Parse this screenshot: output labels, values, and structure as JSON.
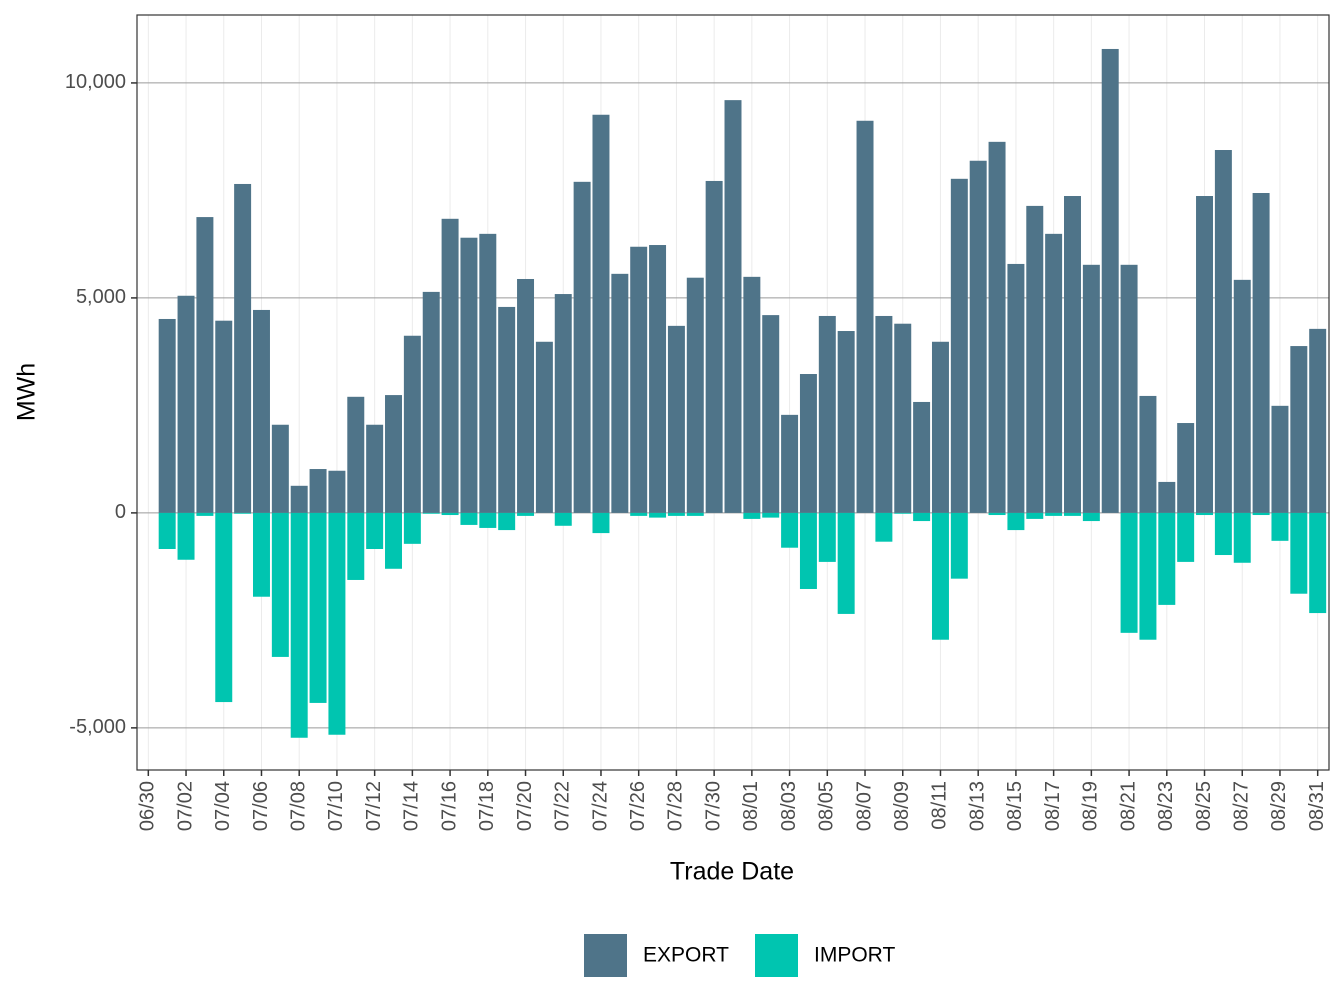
{
  "chart_data": {
    "type": "bar",
    "x_label": "Trade Date",
    "y_label": "MWh",
    "categories": [
      "06/30",
      null,
      "07/02",
      null,
      "07/04",
      null,
      "07/06",
      null,
      "07/08",
      null,
      "07/10",
      null,
      "07/12",
      null,
      "07/14",
      null,
      "07/16",
      null,
      "07/18",
      null,
      "07/20",
      null,
      "07/22",
      null,
      "07/24",
      null,
      "07/26",
      null,
      "07/28",
      null,
      "07/30",
      null,
      "08/01",
      null,
      "08/03",
      null,
      "08/05",
      null,
      "08/07",
      null,
      "08/09",
      null,
      "08/11",
      null,
      "08/13",
      null,
      "08/15",
      null,
      "08/17",
      null,
      "08/19",
      null,
      "08/21",
      null,
      "08/23",
      null,
      "08/25",
      null,
      "08/27",
      null,
      "08/29",
      null,
      "08/31"
    ],
    "series": [
      {
        "name": "EXPORT",
        "color": "#4f7489",
        "values": [
          null,
          4510,
          5050,
          6880,
          4470,
          7650,
          4720,
          2050,
          630,
          1020,
          980,
          2700,
          2050,
          2740,
          4120,
          5140,
          6840,
          6400,
          6490,
          4790,
          5440,
          3980,
          5090,
          7700,
          9260,
          5560,
          6190,
          6230,
          4350,
          5470,
          7720,
          9600,
          5490,
          4600,
          2280,
          3230,
          4580,
          4230,
          9120,
          4580,
          4400,
          2580,
          3980,
          7770,
          8190,
          8630,
          5790,
          7140,
          6490,
          7370,
          5770,
          10790,
          5770,
          2720,
          720,
          2090,
          7370,
          8440,
          5420,
          7440,
          2490,
          3880,
          4280
        ]
      },
      {
        "name": "IMPORT",
        "color": "#00c5b0",
        "values": [
          null,
          -840,
          -1090,
          -70,
          -4400,
          -20,
          -1950,
          -3350,
          -5230,
          -4420,
          -5160,
          -1560,
          -840,
          -1300,
          -720,
          -20,
          -50,
          -280,
          -350,
          -400,
          -70,
          0,
          -300,
          0,
          -470,
          0,
          -70,
          -110,
          -70,
          -70,
          0,
          0,
          -140,
          -110,
          -810,
          -1770,
          -1140,
          -2350,
          0,
          -670,
          -20,
          -190,
          -2950,
          -1530,
          0,
          -50,
          -400,
          -140,
          -70,
          -70,
          -190,
          0,
          -2790,
          -2950,
          -2140,
          -1140,
          -50,
          -980,
          -1160,
          -50,
          -650,
          -1880,
          -2330
        ]
      }
    ],
    "ylim": [
      -5980,
      11580
    ],
    "yticks": [
      {
        "value": -5000,
        "label": "-5,000"
      },
      0,
      {
        "value": 5000,
        "label": "5,000"
      },
      {
        "value": 10000,
        "label": "10,000"
      }
    ],
    "grid": true,
    "legend": "bottom"
  }
}
